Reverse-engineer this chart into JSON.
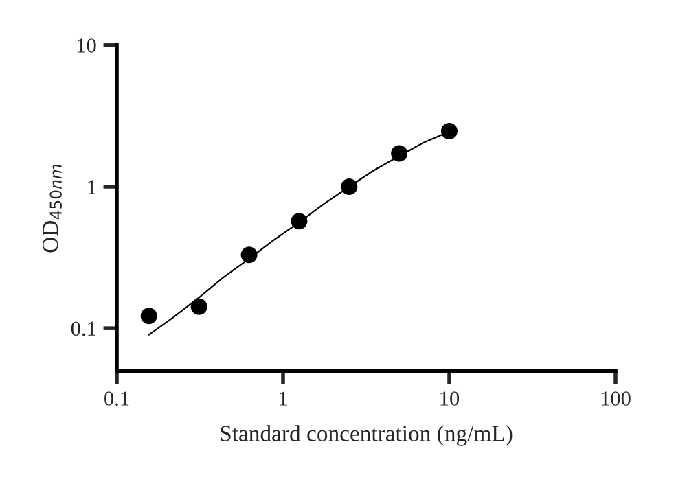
{
  "chart_data": {
    "type": "scatter",
    "xlabel": "Standard concentration (ng/mL)",
    "ylabel": "OD$_{450nm}$",
    "log": "xy",
    "xlim": [
      0.1,
      100
    ],
    "ylim": [
      0.05,
      10
    ],
    "xticks": [
      0.1,
      1,
      10,
      100
    ],
    "yticks": [
      0.1,
      1,
      10
    ],
    "grid": false,
    "legend": false,
    "series": [
      {
        "color": "#000000",
        "marker": "circle",
        "x": [
          0.156,
          0.3125,
          0.625,
          1.25,
          2.5,
          5,
          10
        ],
        "values": [
          0.122,
          0.142,
          0.33,
          0.57,
          1.0,
          1.72,
          2.47
        ]
      },
      {
        "type": "line",
        "color": "#000000",
        "marker": "none",
        "line_style": "solid",
        "x": [
          0.156,
          0.22,
          0.3125,
          0.44,
          0.625,
          0.88,
          1.25,
          1.77,
          2.5,
          3.5,
          5,
          7,
          10
        ],
        "values": [
          0.09,
          0.12,
          0.165,
          0.23,
          0.31,
          0.42,
          0.56,
          0.76,
          1.0,
          1.3,
          1.65,
          2.05,
          2.45
        ]
      }
    ]
  }
}
